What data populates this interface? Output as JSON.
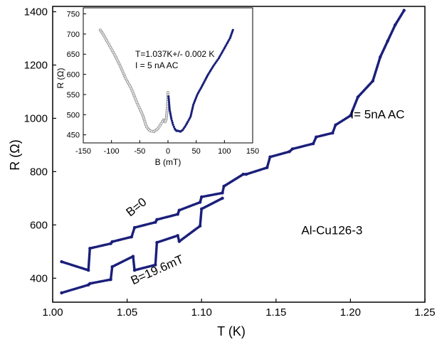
{
  "chart_data": [
    {
      "type": "scatter",
      "id": "main",
      "xlabel": "T (K)",
      "ylabel": "R (Ω)",
      "xlim": [
        1.0,
        1.25
      ],
      "ylim": [
        310,
        1420
      ],
      "xticks": [
        1.0,
        1.05,
        1.1,
        1.15,
        1.2,
        1.25
      ],
      "xtick_labels": [
        "1.00",
        "1.05",
        "1.10",
        "1.15",
        "1.20",
        "1.25"
      ],
      "yticks": [
        400,
        600,
        800,
        1000,
        1200,
        1400
      ],
      "ytick_labels": [
        "400",
        "600",
        "800",
        "1000",
        "1200",
        "1400"
      ],
      "grid": false,
      "colors": {
        "dots": "#1a1f7a",
        "dark_dots": "#111111"
      },
      "annotations": [
        {
          "id": "b0",
          "text": "B=0",
          "x": 1.052,
          "y": 630,
          "rotate": -38
        },
        {
          "id": "b196",
          "text": "B=19.6mT",
          "x": 1.054,
          "y": 375,
          "rotate": -24
        },
        {
          "id": "sample",
          "text": "Al-Cu126-3",
          "x": 1.167,
          "y": 565,
          "rotate": 0
        },
        {
          "id": "current",
          "text": "I= 5nA AC",
          "x": 1.2,
          "y": 1000,
          "rotate": 0
        }
      ],
      "series": [
        {
          "legend": "none",
          "x": [
            1.006,
            1.024,
            1.025,
            1.039,
            1.04,
            1.053,
            1.055,
            1.069,
            1.07,
            1.084,
            1.085,
            1.099,
            1.1,
            1.114,
            1.115,
            1.128,
            1.13,
            1.144,
            1.146,
            1.159,
            1.161,
            1.175,
            1.177,
            1.188,
            1.19,
            1.2,
            1.205,
            1.215,
            1.22,
            1.225,
            1.23,
            1.236
          ],
          "y": [
            462,
            430,
            512,
            530,
            537,
            555,
            590,
            610,
            620,
            640,
            655,
            685,
            705,
            720,
            745,
            790,
            790,
            815,
            855,
            875,
            885,
            905,
            930,
            945,
            975,
            1010,
            1080,
            1140,
            1230,
            1290,
            1350,
            1405
          ]
        },
        {
          "legend": "none",
          "x": [
            1.006,
            1.024,
            1.025,
            1.039,
            1.04,
            1.054,
            1.055,
            1.069,
            1.07,
            1.084,
            1.085,
            1.099,
            1.1,
            1.114
          ],
          "y": [
            345,
            375,
            380,
            395,
            443,
            482,
            430,
            450,
            534,
            560,
            538,
            596,
            660,
            700
          ]
        }
      ]
    },
    {
      "type": "scatter",
      "id": "inset",
      "xlabel": "B (mT)",
      "ylabel": "R (Ω)",
      "xlim": [
        -150,
        150
      ],
      "ylim": [
        430,
        765
      ],
      "xticks": [
        -150,
        -100,
        -50,
        0,
        50,
        100,
        150
      ],
      "xtick_labels": [
        "-150",
        "-100",
        "-50",
        "0",
        "50",
        "100",
        "150"
      ],
      "yticks": [
        450,
        500,
        550,
        600,
        650,
        700,
        750
      ],
      "ytick_labels": [
        "450",
        "500",
        "550",
        "600",
        "650",
        "700",
        "750"
      ],
      "annotations": [
        {
          "id": "temp",
          "text": "T=1.037K+/- 0.002 K"
        },
        {
          "id": "cur",
          "text": "I = 5 nA AC"
        }
      ],
      "series": [
        {
          "legend": "none",
          "color": "#9a9a9a",
          "x": [
            -120,
            -115,
            -105,
            -95,
            -85,
            -75,
            -65,
            -55,
            -45,
            -38,
            -32,
            -25,
            -18,
            -12,
            -8,
            -5,
            -3,
            -1,
            0
          ],
          "y": [
            710,
            700,
            675,
            650,
            622,
            590,
            565,
            530,
            500,
            470,
            460,
            458,
            465,
            478,
            487,
            482,
            490,
            520,
            555
          ]
        },
        {
          "legend": "none",
          "color": "#1a1f7a",
          "x": [
            1,
            3,
            6,
            9,
            12,
            15,
            18,
            22,
            26,
            30,
            35,
            40,
            45,
            52,
            60,
            70,
            80,
            90,
            100,
            110,
            115
          ],
          "y": [
            545,
            512,
            490,
            475,
            465,
            460,
            460,
            458,
            462,
            470,
            482,
            495,
            525,
            550,
            570,
            597,
            620,
            640,
            665,
            690,
            710
          ]
        }
      ]
    }
  ]
}
